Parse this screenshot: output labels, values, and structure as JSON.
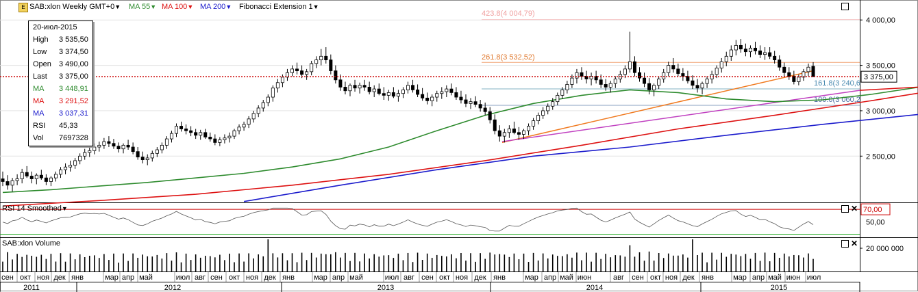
{
  "header": {
    "symbol": "SAB:xlon Weekly GMT+0",
    "ma55": "MA 55",
    "ma100": "MA 100",
    "ma200": "MA 200",
    "fib": "Fibonacci Extension 1"
  },
  "info": {
    "date": "20-июл-2015",
    "rows": [
      {
        "label": "High",
        "value": "3 535,50",
        "color": "#000000"
      },
      {
        "label": "Low",
        "value": "3 374,50",
        "color": "#000000"
      },
      {
        "label": "Open",
        "value": "3 490,00",
        "color": "#000000"
      },
      {
        "label": "Last",
        "value": "3 375,00",
        "color": "#000000"
      },
      {
        "label": "MA",
        "value": "3 448,91",
        "color": "#2e8b2e"
      },
      {
        "label": "MA",
        "value": "3 291,52",
        "color": "#dd1111"
      },
      {
        "label": "MA",
        "value": "3 037,31",
        "color": "#1a1acc"
      },
      {
        "label": "RSI",
        "value": "45,33",
        "color": "#000000"
      },
      {
        "label": "Vol",
        "value": "7697328",
        "color": "#000000"
      }
    ]
  },
  "rsi_panel": {
    "title": "RSI 14 Smoothed",
    "level_label": "70,00",
    "mid_label": "50,00"
  },
  "volume_panel": {
    "title": "SAB:xlon Volume",
    "axis_label": "20 000 000"
  },
  "fib_labels": {
    "f4238": "423.8(4 004,79)",
    "f2618": "261.8(3 532,52)",
    "f1618": "161.8(3 240,6",
    "f1000": "100.0(3 060,2"
  },
  "last_price_tag": "3 375,00",
  "colors": {
    "ma55": "#2e8b2e",
    "ma100": "#dd1111",
    "ma200": "#1a1acc",
    "trend_orange": "#f07a20",
    "trend_magenta": "#c040c0",
    "fib": "#f0a070"
  },
  "chart_data": {
    "type": "line",
    "title": "SAB:xlon Weekly GMT+0",
    "y_ticks": [
      "4 000,00",
      "3 500,00",
      "3 000,00",
      "2 500,00"
    ],
    "y_tick_values": [
      4000,
      3500,
      3000,
      2500
    ],
    "ylim": [
      1990,
      4220
    ],
    "x_months": [
      "сен",
      "окт",
      "ноя",
      "дек",
      "янв",
      "мар",
      "апр",
      "май",
      "июл",
      "авг",
      "сен",
      "окт",
      "ноя",
      "дек",
      "янв",
      "мар",
      "апр",
      "май",
      "июл",
      "авг",
      "сен",
      "окт",
      "ноя",
      "дек",
      "янв",
      "мар",
      "апр",
      "май",
      "июн",
      "авг",
      "сен",
      "окт",
      "ноя",
      "дек",
      "янв",
      "мар",
      "апр",
      "май",
      "июн",
      "июл"
    ],
    "x_years": [
      "2011",
      "2012",
      "2013",
      "2014",
      "2015"
    ],
    "series": [
      {
        "name": "MA 55",
        "x": [
          0,
          10,
          20,
          30,
          40,
          50,
          60,
          70,
          80,
          90,
          100,
          110,
          120,
          130,
          140,
          150,
          160,
          170,
          180,
          190,
          200,
          201
        ],
        "values": [
          2100,
          2130,
          2170,
          2210,
          2260,
          2310,
          2380,
          2470,
          2600,
          2780,
          2950,
          3080,
          3170,
          3230,
          3200,
          3130,
          3100,
          3120,
          3180,
          3260,
          3430,
          3449
        ]
      },
      {
        "name": "MA 100",
        "x": [
          0,
          20,
          40,
          60,
          80,
          100,
          120,
          140,
          160,
          180,
          200,
          201
        ],
        "values": [
          1950,
          2010,
          2080,
          2180,
          2300,
          2450,
          2620,
          2800,
          2950,
          3110,
          3280,
          3292
        ]
      },
      {
        "name": "MA 200",
        "x": [
          50,
          70,
          90,
          110,
          130,
          150,
          170,
          190,
          201
        ],
        "values": [
          2000,
          2180,
          2350,
          2500,
          2600,
          2730,
          2850,
          2960,
          3037
        ]
      }
    ],
    "candles": [
      [
        2250,
        2330,
        2170,
        2220
      ],
      [
        2220,
        2290,
        2130,
        2180
      ],
      [
        2180,
        2260,
        2110,
        2230
      ],
      [
        2230,
        2300,
        2180,
        2250
      ],
      [
        2250,
        2360,
        2200,
        2320
      ],
      [
        2320,
        2390,
        2260,
        2280
      ],
      [
        2280,
        2330,
        2200,
        2250
      ],
      [
        2250,
        2310,
        2190,
        2290
      ],
      [
        2290,
        2350,
        2240,
        2260
      ],
      [
        2260,
        2300,
        2180,
        2220
      ],
      [
        2220,
        2280,
        2170,
        2260
      ],
      [
        2260,
        2330,
        2220,
        2300
      ],
      [
        2300,
        2380,
        2260,
        2350
      ],
      [
        2350,
        2420,
        2300,
        2380
      ],
      [
        2380,
        2450,
        2330,
        2400
      ],
      [
        2400,
        2480,
        2360,
        2450
      ],
      [
        2450,
        2530,
        2410,
        2500
      ],
      [
        2500,
        2580,
        2460,
        2540
      ],
      [
        2540,
        2610,
        2490,
        2560
      ],
      [
        2560,
        2640,
        2520,
        2600
      ],
      [
        2600,
        2660,
        2550,
        2620
      ],
      [
        2620,
        2700,
        2580,
        2660
      ],
      [
        2660,
        2720,
        2600,
        2640
      ],
      [
        2640,
        2690,
        2580,
        2610
      ],
      [
        2610,
        2650,
        2540,
        2580
      ],
      [
        2580,
        2640,
        2530,
        2620
      ],
      [
        2620,
        2680,
        2570,
        2600
      ],
      [
        2600,
        2650,
        2520,
        2550
      ],
      [
        2550,
        2600,
        2460,
        2490
      ],
      [
        2490,
        2550,
        2420,
        2460
      ],
      [
        2460,
        2520,
        2400,
        2480
      ],
      [
        2480,
        2560,
        2440,
        2530
      ],
      [
        2530,
        2600,
        2490,
        2570
      ],
      [
        2570,
        2650,
        2530,
        2620
      ],
      [
        2620,
        2720,
        2580,
        2690
      ],
      [
        2690,
        2780,
        2650,
        2750
      ],
      [
        2750,
        2860,
        2710,
        2830
      ],
      [
        2830,
        2880,
        2770,
        2800
      ],
      [
        2800,
        2850,
        2740,
        2780
      ],
      [
        2780,
        2830,
        2720,
        2760
      ],
      [
        2760,
        2800,
        2690,
        2730
      ],
      [
        2730,
        2790,
        2680,
        2760
      ],
      [
        2760,
        2800,
        2690,
        2710
      ],
      [
        2710,
        2760,
        2660,
        2690
      ],
      [
        2690,
        2740,
        2620,
        2650
      ],
      [
        2650,
        2710,
        2610,
        2680
      ],
      [
        2680,
        2740,
        2640,
        2700
      ],
      [
        2700,
        2760,
        2650,
        2720
      ],
      [
        2720,
        2800,
        2690,
        2780
      ],
      [
        2780,
        2850,
        2740,
        2820
      ],
      [
        2820,
        2880,
        2780,
        2850
      ],
      [
        2850,
        2940,
        2810,
        2910
      ],
      [
        2910,
        3000,
        2870,
        2970
      ],
      [
        2970,
        3060,
        2930,
        3030
      ],
      [
        3030,
        3120,
        2990,
        3090
      ],
      [
        3090,
        3180,
        3050,
        3150
      ],
      [
        3150,
        3280,
        3100,
        3250
      ],
      [
        3250,
        3350,
        3200,
        3310
      ],
      [
        3310,
        3400,
        3260,
        3370
      ],
      [
        3370,
        3460,
        3330,
        3420
      ],
      [
        3420,
        3500,
        3380,
        3460
      ],
      [
        3460,
        3530,
        3400,
        3440
      ],
      [
        3440,
        3500,
        3360,
        3400
      ],
      [
        3400,
        3460,
        3340,
        3430
      ],
      [
        3430,
        3550,
        3390,
        3520
      ],
      [
        3520,
        3600,
        3470,
        3560
      ],
      [
        3560,
        3680,
        3500,
        3600
      ],
      [
        3600,
        3700,
        3520,
        3560
      ],
      [
        3560,
        3620,
        3400,
        3440
      ],
      [
        3440,
        3500,
        3300,
        3340
      ],
      [
        3340,
        3400,
        3220,
        3260
      ],
      [
        3260,
        3320,
        3180,
        3220
      ],
      [
        3220,
        3300,
        3160,
        3280
      ],
      [
        3280,
        3340,
        3210,
        3250
      ],
      [
        3250,
        3310,
        3190,
        3280
      ],
      [
        3280,
        3340,
        3220,
        3260
      ],
      [
        3260,
        3320,
        3180,
        3210
      ],
      [
        3210,
        3280,
        3150,
        3240
      ],
      [
        3240,
        3300,
        3170,
        3190
      ],
      [
        3190,
        3260,
        3120,
        3170
      ],
      [
        3170,
        3230,
        3110,
        3200
      ],
      [
        3200,
        3260,
        3140,
        3160
      ],
      [
        3160,
        3230,
        3100,
        3190
      ],
      [
        3190,
        3260,
        3140,
        3230
      ],
      [
        3230,
        3320,
        3190,
        3280
      ],
      [
        3280,
        3340,
        3200,
        3230
      ],
      [
        3230,
        3290,
        3150,
        3180
      ],
      [
        3180,
        3250,
        3110,
        3140
      ],
      [
        3140,
        3200,
        3070,
        3110
      ],
      [
        3110,
        3180,
        3050,
        3150
      ],
      [
        3150,
        3220,
        3100,
        3190
      ],
      [
        3190,
        3260,
        3130,
        3210
      ],
      [
        3210,
        3280,
        3150,
        3240
      ],
      [
        3240,
        3300,
        3170,
        3200
      ],
      [
        3200,
        3260,
        3120,
        3150
      ],
      [
        3150,
        3220,
        3080,
        3120
      ],
      [
        3120,
        3180,
        3040,
        3080
      ],
      [
        3080,
        3140,
        3020,
        3100
      ],
      [
        3100,
        3160,
        3040,
        3070
      ],
      [
        3070,
        3120,
        2990,
        3030
      ],
      [
        3030,
        3090,
        2950,
        2990
      ],
      [
        2990,
        3040,
        2860,
        2900
      ],
      [
        2900,
        2960,
        2740,
        2780
      ],
      [
        2780,
        2840,
        2660,
        2720
      ],
      [
        2720,
        2800,
        2650,
        2760
      ],
      [
        2760,
        2840,
        2700,
        2800
      ],
      [
        2800,
        2880,
        2740,
        2760
      ],
      [
        2760,
        2820,
        2680,
        2740
      ],
      [
        2740,
        2800,
        2690,
        2780
      ],
      [
        2780,
        2860,
        2730,
        2830
      ],
      [
        2830,
        2920,
        2790,
        2890
      ],
      [
        2890,
        2980,
        2850,
        2950
      ],
      [
        2950,
        3040,
        2910,
        3000
      ],
      [
        3000,
        3080,
        2960,
        3050
      ],
      [
        3050,
        3140,
        3010,
        3100
      ],
      [
        3100,
        3200,
        3060,
        3170
      ],
      [
        3170,
        3260,
        3130,
        3230
      ],
      [
        3230,
        3330,
        3190,
        3290
      ],
      [
        3290,
        3400,
        3250,
        3360
      ],
      [
        3360,
        3460,
        3300,
        3420
      ],
      [
        3420,
        3480,
        3340,
        3380
      ],
      [
        3380,
        3440,
        3300,
        3350
      ],
      [
        3350,
        3420,
        3280,
        3380
      ],
      [
        3380,
        3440,
        3300,
        3340
      ],
      [
        3340,
        3400,
        3250,
        3290
      ],
      [
        3290,
        3350,
        3220,
        3260
      ],
      [
        3260,
        3330,
        3200,
        3300
      ],
      [
        3300,
        3380,
        3250,
        3350
      ],
      [
        3350,
        3440,
        3310,
        3400
      ],
      [
        3400,
        3500,
        3360,
        3460
      ],
      [
        3460,
        3870,
        3420,
        3540
      ],
      [
        3540,
        3600,
        3380,
        3420
      ],
      [
        3420,
        3480,
        3320,
        3360
      ],
      [
        3360,
        3420,
        3260,
        3300
      ],
      [
        3300,
        3360,
        3180,
        3230
      ],
      [
        3230,
        3300,
        3160,
        3280
      ],
      [
        3280,
        3380,
        3240,
        3350
      ],
      [
        3350,
        3460,
        3310,
        3420
      ],
      [
        3420,
        3540,
        3380,
        3500
      ],
      [
        3500,
        3580,
        3420,
        3460
      ],
      [
        3460,
        3520,
        3380,
        3410
      ],
      [
        3410,
        3470,
        3330,
        3380
      ],
      [
        3380,
        3440,
        3300,
        3330
      ],
      [
        3330,
        3390,
        3240,
        3280
      ],
      [
        3280,
        3350,
        3200,
        3250
      ],
      [
        3250,
        3320,
        3180,
        3300
      ],
      [
        3300,
        3380,
        3250,
        3350
      ],
      [
        3350,
        3440,
        3300,
        3400
      ],
      [
        3400,
        3500,
        3360,
        3470
      ],
      [
        3470,
        3580,
        3420,
        3540
      ],
      [
        3540,
        3650,
        3490,
        3600
      ],
      [
        3600,
        3720,
        3550,
        3670
      ],
      [
        3670,
        3780,
        3610,
        3720
      ],
      [
        3720,
        3790,
        3640,
        3680
      ],
      [
        3680,
        3740,
        3600,
        3650
      ],
      [
        3650,
        3720,
        3590,
        3690
      ],
      [
        3690,
        3760,
        3620,
        3660
      ],
      [
        3660,
        3720,
        3580,
        3620
      ],
      [
        3620,
        3700,
        3560,
        3640
      ],
      [
        3640,
        3700,
        3570,
        3600
      ],
      [
        3600,
        3660,
        3520,
        3560
      ],
      [
        3560,
        3610,
        3440,
        3480
      ],
      [
        3480,
        3530,
        3380,
        3420
      ],
      [
        3420,
        3480,
        3340,
        3380
      ],
      [
        3380,
        3440,
        3290,
        3320
      ],
      [
        3320,
        3400,
        3280,
        3370
      ],
      [
        3370,
        3460,
        3330,
        3430
      ],
      [
        3430,
        3520,
        3380,
        3480
      ],
      [
        3490,
        3535.5,
        3374.5,
        3375
      ]
    ],
    "rsi": {
      "name": "RSI 14 Smoothed",
      "levels": [
        70,
        50
      ],
      "last": 45.33
    },
    "volume_max_label": 20000000
  }
}
